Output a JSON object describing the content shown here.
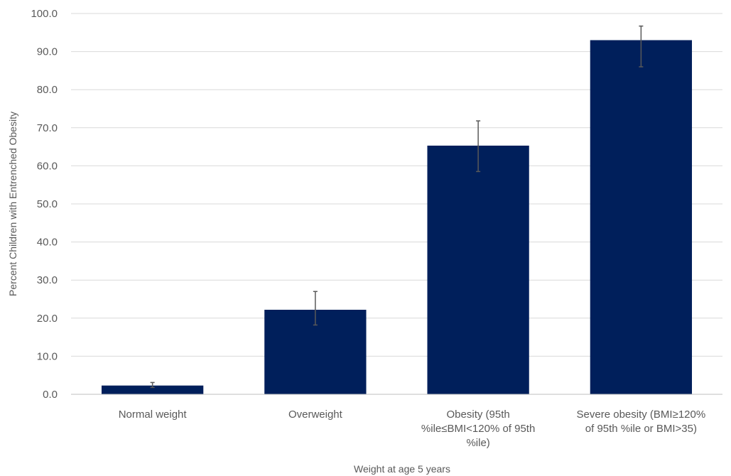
{
  "chart_data": {
    "type": "bar",
    "title": "",
    "xlabel": "Weight at age 5 years",
    "ylabel": "Percent Children with Entrenched Obesity",
    "ylim": [
      0,
      100
    ],
    "ytick_step": 10,
    "ytick_labels": [
      "0.0",
      "10.0",
      "20.0",
      "30.0",
      "40.0",
      "50.0",
      "60.0",
      "70.0",
      "80.0",
      "90.0",
      "100.0"
    ],
    "grid": true,
    "legend": "none",
    "categories": [
      [
        "Normal weight"
      ],
      [
        "Overweight"
      ],
      [
        "Obesity (95th",
        "%ile≤BMI<120% of 95th",
        "%ile)"
      ],
      [
        "Severe obesity (BMI≥120%",
        "of 95th %ile or BMI>35)"
      ]
    ],
    "values": [
      2.3,
      22.2,
      65.3,
      93.0
    ],
    "error_low": [
      1.8,
      18.2,
      58.5,
      86.0
    ],
    "error_high": [
      3.1,
      27.0,
      71.8,
      96.7
    ],
    "colors": {
      "bar": "#001f5b",
      "error_bar": "#595959",
      "grid": "#d9d9d9",
      "axis": "#bfbfbf"
    }
  }
}
